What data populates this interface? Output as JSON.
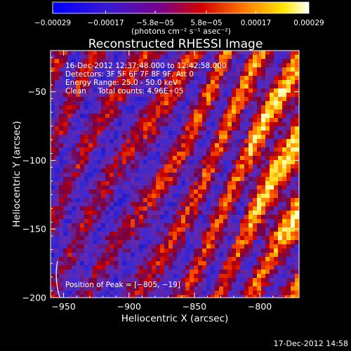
{
  "chart_data": {
    "type": "heatmap",
    "title": "Reconstructed RHESSI Image",
    "xlabel": "Heliocentric X (arcsec)",
    "ylabel": "Heliocentric Y (arcsec)",
    "xlim": [
      -960,
      -770
    ],
    "ylim": [
      -200,
      -20
    ],
    "x_ticks": [
      -950,
      -900,
      -850,
      -800
    ],
    "y_ticks": [
      -50,
      -100,
      -150,
      -200
    ],
    "x_tick_labels": [
      "−950",
      "−900",
      "−850",
      "−800"
    ],
    "y_tick_labels": [
      "−50",
      "−100",
      "−150",
      "−200"
    ],
    "colorbar": {
      "colormap": "blue-purple-red-yellow-white",
      "ticks": [
        -0.00029,
        -0.00017,
        -5.8e-05,
        5.8e-05,
        0.00017,
        0.00029
      ],
      "tick_labels": [
        "−0.00029",
        "−0.00017",
        "−5.8e−05",
        "5.8e−05",
        "0.00017",
        "0.00029"
      ],
      "unit": "(photons cm⁻² s⁻¹ asec⁻²)",
      "range": [
        -0.00029,
        0.00029
      ]
    },
    "annotations": {
      "time": "16-Dec-2012 12:37:48.000 to 12:42:58.000",
      "detectors": "Detectors: 3F 5F 6F 7F 8F 9F, Att 0",
      "energy": "Energy Range: 25.0 - 50.0 keV",
      "method": "Clean     Total counts: 4.96E+05",
      "peak": "Position of Peak = [−805, −19]"
    },
    "grid": false,
    "data_note": "Noisy diagonal stripe pattern; brightest emission toward upper-right."
  },
  "footer": "17-Dec-2012 14:58",
  "colors": {
    "background": "#000000",
    "text": "#ffffff",
    "stripe_low": "#2020d0",
    "stripe_high": "#ffffa0"
  }
}
